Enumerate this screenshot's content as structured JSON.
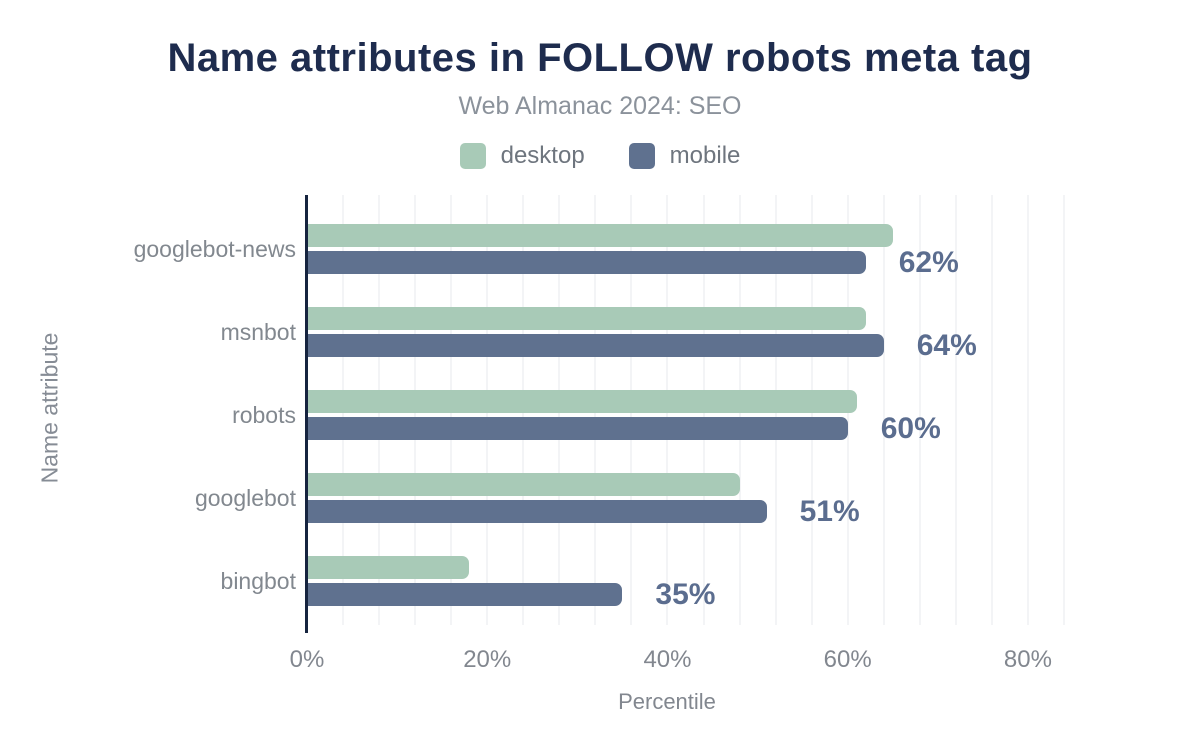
{
  "chart_data": {
    "type": "bar",
    "orientation": "horizontal",
    "title": "Name attributes in FOLLOW robots meta tag",
    "subtitle": "Web Almanac 2024: SEO",
    "xlabel": "Percentile",
    "ylabel": "Name attribute",
    "categories": [
      "googlebot-news",
      "msnbot",
      "robots",
      "googlebot",
      "bingbot"
    ],
    "series": [
      {
        "name": "desktop",
        "color": "#a8cab7",
        "values": [
          65,
          62,
          61,
          48,
          18
        ]
      },
      {
        "name": "mobile",
        "color": "#5f718f",
        "values": [
          62,
          64,
          60,
          51,
          35
        ]
      }
    ],
    "value_labels": [
      "62%",
      "64%",
      "60%",
      "51%",
      "35%"
    ],
    "value_labels_on_series": "mobile",
    "x_ticks": [
      "0%",
      "20%",
      "40%",
      "60%",
      "80%"
    ],
    "x_tick_values": [
      0,
      20,
      40,
      60,
      80
    ],
    "xlim": [
      0,
      84
    ],
    "grid_step_pct": 4,
    "grid": "vertical-minor",
    "legend_position": "top-center",
    "colors": {
      "title": "#1e2c4e",
      "subtitle": "#8b929b",
      "axis_line": "#16243f",
      "gridline": "#f3f4f6",
      "tick_label": "#82878f",
      "category_label": "#82888f",
      "legend_label": "#6e757e",
      "value_label": "#5b6d8f",
      "desktop_bar": "#a8cab7",
      "mobile_bar": "#5f718f"
    }
  }
}
